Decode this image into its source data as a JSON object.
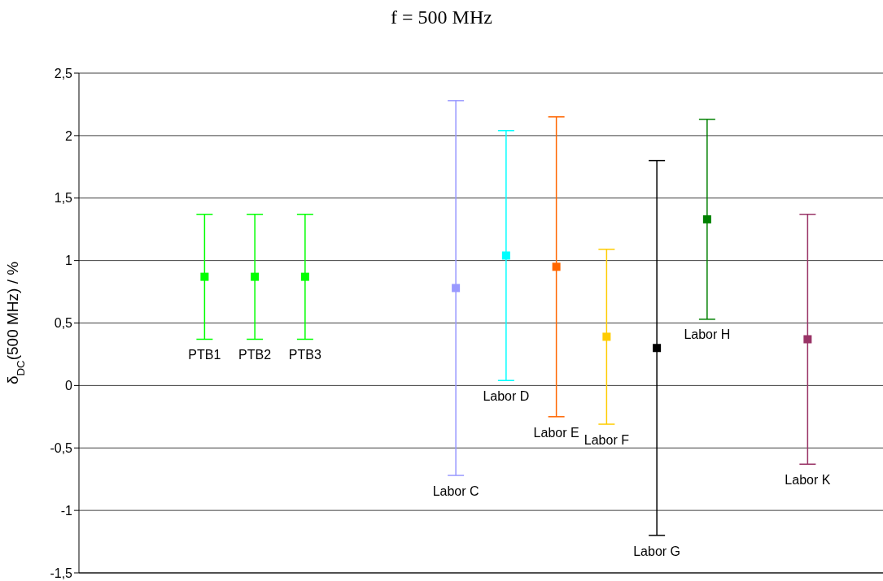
{
  "chart_data": {
    "type": "scatter",
    "title": "f = 500 MHz",
    "ylabel": "δ$_{DC}$(500 MHz) / %",
    "marker": "square",
    "grid": "y",
    "legend": false,
    "categories": [
      null,
      null,
      "PTB1",
      "PTB2",
      "PTB3",
      null,
      null,
      "Labor C",
      "Labor D",
      "Labor E",
      "Labor F",
      "Labor G",
      "Labor H",
      null,
      "Labor K",
      null
    ],
    "ylim": [
      -1.5,
      2.5
    ],
    "yticks": [
      {
        "value": -1.5,
        "label": "-1,5"
      },
      {
        "value": -1,
        "label": "-1"
      },
      {
        "value": -0.5,
        "label": "-0,5"
      },
      {
        "value": 0,
        "label": "0"
      },
      {
        "value": 0.5,
        "label": "0,5"
      },
      {
        "value": 1,
        "label": "1"
      },
      {
        "value": 1.5,
        "label": "1,5"
      },
      {
        "value": 2,
        "label": "2"
      },
      {
        "value": 2.5,
        "label": "2,5"
      }
    ],
    "values": [
      null,
      null,
      0.87,
      0.87,
      0.87,
      null,
      null,
      0.78,
      1.04,
      0.95,
      0.39,
      0.3,
      1.33,
      null,
      0.37,
      null
    ],
    "errors": [
      null,
      null,
      0.5,
      0.5,
      0.5,
      null,
      null,
      1.5,
      1.0,
      1.2,
      0.7,
      1.5,
      0.8,
      null,
      1.0,
      null
    ],
    "colors": [
      "#000000",
      "#000000",
      "#00ff00",
      "#00ff00",
      "#00ff00",
      "#000000",
      "#000000",
      "#9999ff",
      "#00ffff",
      "#ff6600",
      "#ffcc00",
      "#000000",
      "#008000",
      "#000000",
      "#993366",
      "#000000"
    ]
  }
}
